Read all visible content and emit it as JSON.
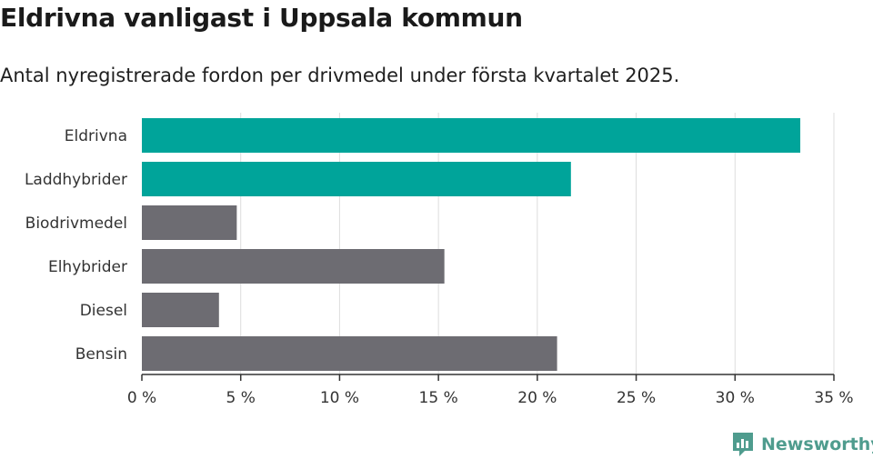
{
  "header": {
    "title": "Eldrivna vanligast i Uppsala kommun",
    "subtitle": "Antal nyregistrerade fordon per drivmedel under första kvartalet 2025."
  },
  "brand": {
    "name": "Newsworthy"
  },
  "colors": {
    "highlight": "#00a49a",
    "default": "#6d6c72",
    "grid": "#dddddd",
    "axis": "#333333"
  },
  "chart_data": {
    "type": "bar",
    "orientation": "horizontal",
    "categories": [
      "Eldrivna",
      "Laddhybrider",
      "Biodrivmedel",
      "Elhybrider",
      "Diesel",
      "Bensin"
    ],
    "values": [
      33.3,
      21.7,
      4.8,
      15.3,
      3.9,
      21.0
    ],
    "highlighted": [
      "Eldrivna",
      "Laddhybrider"
    ],
    "xlim": [
      0,
      35
    ],
    "ticks": [
      0,
      5,
      10,
      15,
      20,
      25,
      30,
      35
    ],
    "tick_labels": [
      "0 %",
      "5 %",
      "10 %",
      "15 %",
      "20 %",
      "25 %",
      "30 %",
      "35 %"
    ],
    "grid": true
  }
}
